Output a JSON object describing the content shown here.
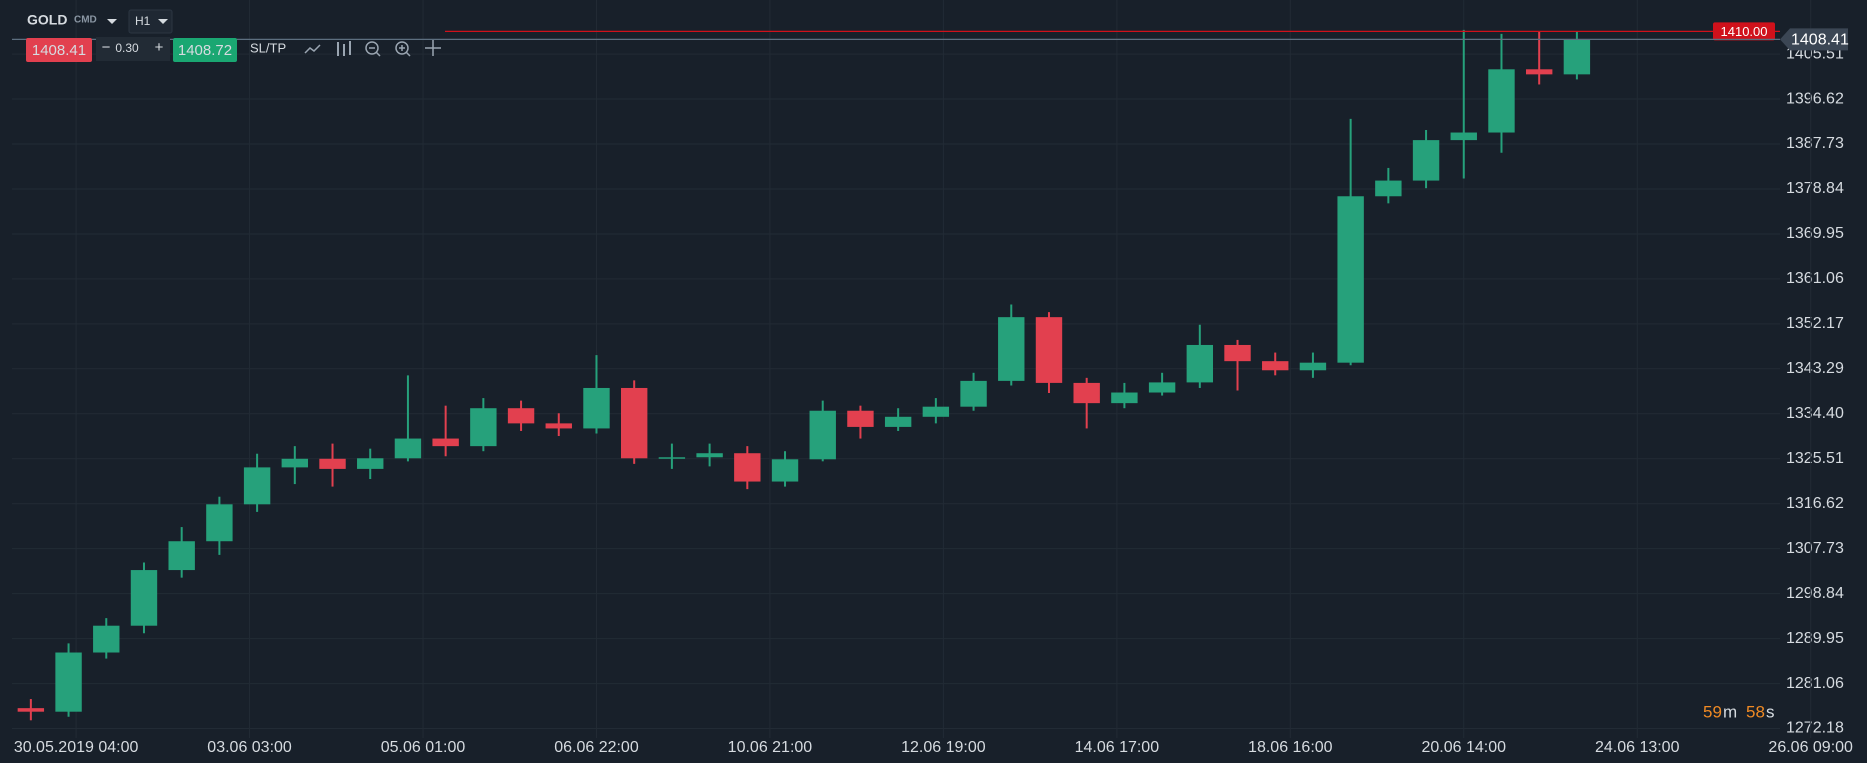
{
  "toolbar": {
    "symbol": "GOLD",
    "market": "CMD",
    "timeframe": "H1",
    "bid": "1408.41",
    "minus": "−",
    "spread": "0.30",
    "plus": "+",
    "ask": "1408.72",
    "sltp": "SL/TP"
  },
  "countdown": {
    "minutes": "59",
    "minutes_unit": "m",
    "seconds": "58",
    "seconds_unit": "s"
  },
  "chart_data": {
    "type": "candlestick",
    "up_color": "#26a17b",
    "down_color": "#e2404f",
    "grid": true,
    "xlim": [
      0,
      480
    ],
    "xticks": [
      {
        "value": 17,
        "label": "30.05.2019 04:00"
      },
      {
        "value": 63,
        "label": "03.06 03:00"
      },
      {
        "value": 109,
        "label": "05.06 01:00"
      },
      {
        "value": 155,
        "label": "06.06 22:00"
      },
      {
        "value": 201,
        "label": "10.06 21:00"
      },
      {
        "value": 247,
        "label": "12.06 19:00"
      },
      {
        "value": 293,
        "label": "14.06 17:00"
      },
      {
        "value": 339,
        "label": "18.06 16:00"
      },
      {
        "value": 385,
        "label": "20.06 14:00"
      },
      {
        "value": 431,
        "label": "24.06 13:00"
      },
      {
        "value": 477,
        "label": "26.06 09:00"
      }
    ],
    "ylim": [
      1270.3,
      1416.2
    ],
    "yticks": [
      1405.51,
      1396.62,
      1387.73,
      1378.84,
      1369.95,
      1361.06,
      1352.17,
      1343.29,
      {
        "value": 1334.4,
        "label": "1334.40"
      },
      1325.51,
      1316.62,
      1307.73,
      1298.84,
      1289.95,
      1281.06,
      1272.18
    ],
    "x": [
      5,
      15,
      25,
      35,
      45,
      55,
      65,
      75,
      85,
      95,
      105,
      115,
      125,
      135,
      145,
      155,
      165,
      175,
      185,
      195,
      205,
      215,
      225,
      235,
      245,
      255,
      265,
      275,
      285,
      295,
      305,
      315,
      325,
      335,
      345,
      355,
      365,
      375,
      385,
      395,
      405,
      415
    ],
    "open": [
      1276.2,
      1275.5,
      1287.2,
      1292.5,
      1303.5,
      1309.2,
      1316.5,
      1323.8,
      1325.5,
      1323.5,
      1325.6,
      1329.5,
      1328,
      1335.5,
      1332.5,
      1331.5,
      1339.5,
      1325.6,
      1325.8,
      1326.6,
      1321,
      1325.4,
      1335,
      1331.8,
      1333.8,
      1335.8,
      1340.9,
      1353.5,
      1340.5,
      1336.5,
      1338.6,
      1340.6,
      1348,
      1344.8,
      1343,
      1344.5,
      1377.4,
      1380.5,
      1388.5,
      1390,
      1402.5,
      1401.5
    ],
    "high": [
      1278,
      1289,
      1294,
      1305,
      1312,
      1318,
      1326.5,
      1328,
      1328.5,
      1327.5,
      1342,
      1336,
      1337.5,
      1337,
      1334.5,
      1346,
      1341,
      1328.5,
      1328.5,
      1328,
      1327,
      1337,
      1336,
      1335.5,
      1337.5,
      1342.5,
      1356,
      1354.5,
      1341.5,
      1340.5,
      1342.5,
      1352,
      1349,
      1346.5,
      1346.5,
      1392.7,
      1383,
      1390.5,
      1410.3,
      1409.5,
      1410,
      1410
    ],
    "low": [
      1273.8,
      1274.5,
      1286,
      1291,
      1302,
      1306.5,
      1315,
      1320.5,
      1320,
      1321.5,
      1325,
      1326,
      1327,
      1331,
      1330,
      1330.5,
      1324.5,
      1323.5,
      1324,
      1319.5,
      1320,
      1325,
      1329.5,
      1331,
      1332.5,
      1335,
      1340,
      1338.5,
      1331.5,
      1335.5,
      1338,
      1339.5,
      1339,
      1342,
      1341.5,
      1344,
      1376,
      1379,
      1380.9,
      1386,
      1399.5,
      1400.5
    ],
    "close": [
      1275.5,
      1287.2,
      1292.5,
      1303.5,
      1309.2,
      1316.5,
      1323.8,
      1325.5,
      1323.5,
      1325.6,
      1329.5,
      1328,
      1335.5,
      1332.5,
      1331.5,
      1339.5,
      1325.6,
      1325.8,
      1326.6,
      1321,
      1325.4,
      1335,
      1331.8,
      1333.8,
      1335.8,
      1340.9,
      1353.5,
      1340.5,
      1336.5,
      1338.6,
      1340.6,
      1348,
      1344.8,
      1343,
      1344.5,
      1377.4,
      1380.5,
      1388.5,
      1390,
      1402.5,
      1401.5,
      1408.41
    ],
    "price_lines": [
      {
        "value": 1410,
        "label": "1410.00",
        "color": "#d0111b"
      },
      {
        "value": 1408.41,
        "color": "#5d6f80"
      }
    ]
  }
}
